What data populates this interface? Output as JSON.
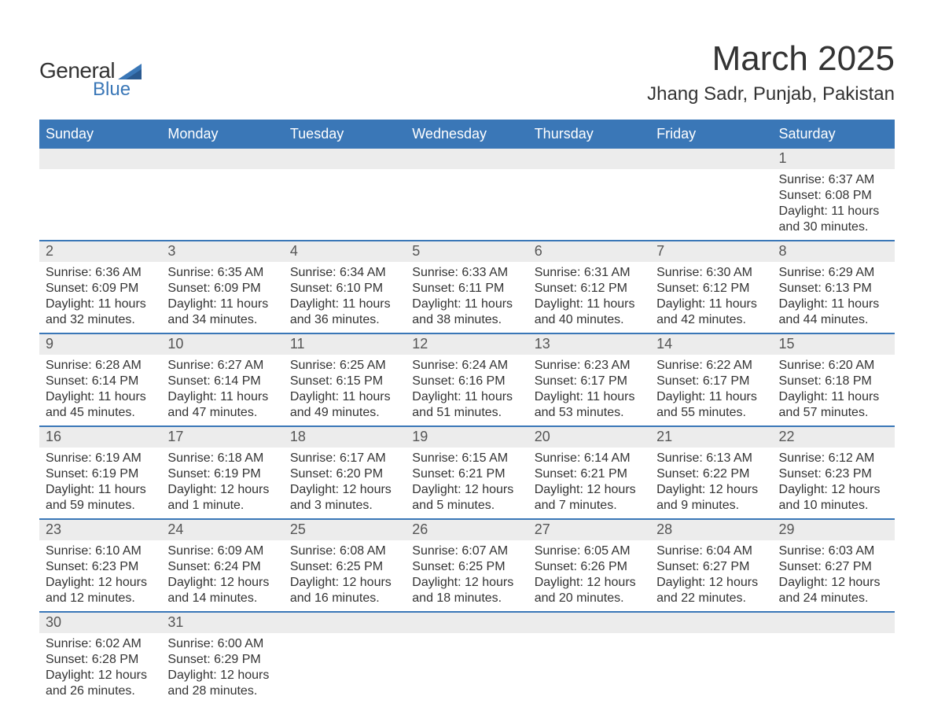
{
  "logo": {
    "word1": "General",
    "word2": "Blue",
    "flag_color": "#3a77b7"
  },
  "title": "March 2025",
  "location": "Jhang Sadr, Punjab, Pakistan",
  "calendar": {
    "type": "table",
    "header_bg": "#3a77b7",
    "header_text_color": "#ffffff",
    "row_divider_color": "#3a77b7",
    "daterow_bg": "#ececec",
    "body_bg": "#ffffff",
    "text_color": "#333333",
    "header_fontsize": 18,
    "daynum_fontsize": 18,
    "info_fontsize": 16,
    "weekdays": [
      "Sunday",
      "Monday",
      "Tuesday",
      "Wednesday",
      "Thursday",
      "Friday",
      "Saturday"
    ],
    "weeks": [
      [
        null,
        null,
        null,
        null,
        null,
        null,
        {
          "n": "1",
          "sr": "Sunrise: 6:37 AM",
          "ss": "Sunset: 6:08 PM",
          "d1": "Daylight: 11 hours",
          "d2": "and 30 minutes."
        }
      ],
      [
        {
          "n": "2",
          "sr": "Sunrise: 6:36 AM",
          "ss": "Sunset: 6:09 PM",
          "d1": "Daylight: 11 hours",
          "d2": "and 32 minutes."
        },
        {
          "n": "3",
          "sr": "Sunrise: 6:35 AM",
          "ss": "Sunset: 6:09 PM",
          "d1": "Daylight: 11 hours",
          "d2": "and 34 minutes."
        },
        {
          "n": "4",
          "sr": "Sunrise: 6:34 AM",
          "ss": "Sunset: 6:10 PM",
          "d1": "Daylight: 11 hours",
          "d2": "and 36 minutes."
        },
        {
          "n": "5",
          "sr": "Sunrise: 6:33 AM",
          "ss": "Sunset: 6:11 PM",
          "d1": "Daylight: 11 hours",
          "d2": "and 38 minutes."
        },
        {
          "n": "6",
          "sr": "Sunrise: 6:31 AM",
          "ss": "Sunset: 6:12 PM",
          "d1": "Daylight: 11 hours",
          "d2": "and 40 minutes."
        },
        {
          "n": "7",
          "sr": "Sunrise: 6:30 AM",
          "ss": "Sunset: 6:12 PM",
          "d1": "Daylight: 11 hours",
          "d2": "and 42 minutes."
        },
        {
          "n": "8",
          "sr": "Sunrise: 6:29 AM",
          "ss": "Sunset: 6:13 PM",
          "d1": "Daylight: 11 hours",
          "d2": "and 44 minutes."
        }
      ],
      [
        {
          "n": "9",
          "sr": "Sunrise: 6:28 AM",
          "ss": "Sunset: 6:14 PM",
          "d1": "Daylight: 11 hours",
          "d2": "and 45 minutes."
        },
        {
          "n": "10",
          "sr": "Sunrise: 6:27 AM",
          "ss": "Sunset: 6:14 PM",
          "d1": "Daylight: 11 hours",
          "d2": "and 47 minutes."
        },
        {
          "n": "11",
          "sr": "Sunrise: 6:25 AM",
          "ss": "Sunset: 6:15 PM",
          "d1": "Daylight: 11 hours",
          "d2": "and 49 minutes."
        },
        {
          "n": "12",
          "sr": "Sunrise: 6:24 AM",
          "ss": "Sunset: 6:16 PM",
          "d1": "Daylight: 11 hours",
          "d2": "and 51 minutes."
        },
        {
          "n": "13",
          "sr": "Sunrise: 6:23 AM",
          "ss": "Sunset: 6:17 PM",
          "d1": "Daylight: 11 hours",
          "d2": "and 53 minutes."
        },
        {
          "n": "14",
          "sr": "Sunrise: 6:22 AM",
          "ss": "Sunset: 6:17 PM",
          "d1": "Daylight: 11 hours",
          "d2": "and 55 minutes."
        },
        {
          "n": "15",
          "sr": "Sunrise: 6:20 AM",
          "ss": "Sunset: 6:18 PM",
          "d1": "Daylight: 11 hours",
          "d2": "and 57 minutes."
        }
      ],
      [
        {
          "n": "16",
          "sr": "Sunrise: 6:19 AM",
          "ss": "Sunset: 6:19 PM",
          "d1": "Daylight: 11 hours",
          "d2": "and 59 minutes."
        },
        {
          "n": "17",
          "sr": "Sunrise: 6:18 AM",
          "ss": "Sunset: 6:19 PM",
          "d1": "Daylight: 12 hours",
          "d2": "and 1 minute."
        },
        {
          "n": "18",
          "sr": "Sunrise: 6:17 AM",
          "ss": "Sunset: 6:20 PM",
          "d1": "Daylight: 12 hours",
          "d2": "and 3 minutes."
        },
        {
          "n": "19",
          "sr": "Sunrise: 6:15 AM",
          "ss": "Sunset: 6:21 PM",
          "d1": "Daylight: 12 hours",
          "d2": "and 5 minutes."
        },
        {
          "n": "20",
          "sr": "Sunrise: 6:14 AM",
          "ss": "Sunset: 6:21 PM",
          "d1": "Daylight: 12 hours",
          "d2": "and 7 minutes."
        },
        {
          "n": "21",
          "sr": "Sunrise: 6:13 AM",
          "ss": "Sunset: 6:22 PM",
          "d1": "Daylight: 12 hours",
          "d2": "and 9 minutes."
        },
        {
          "n": "22",
          "sr": "Sunrise: 6:12 AM",
          "ss": "Sunset: 6:23 PM",
          "d1": "Daylight: 12 hours",
          "d2": "and 10 minutes."
        }
      ],
      [
        {
          "n": "23",
          "sr": "Sunrise: 6:10 AM",
          "ss": "Sunset: 6:23 PM",
          "d1": "Daylight: 12 hours",
          "d2": "and 12 minutes."
        },
        {
          "n": "24",
          "sr": "Sunrise: 6:09 AM",
          "ss": "Sunset: 6:24 PM",
          "d1": "Daylight: 12 hours",
          "d2": "and 14 minutes."
        },
        {
          "n": "25",
          "sr": "Sunrise: 6:08 AM",
          "ss": "Sunset: 6:25 PM",
          "d1": "Daylight: 12 hours",
          "d2": "and 16 minutes."
        },
        {
          "n": "26",
          "sr": "Sunrise: 6:07 AM",
          "ss": "Sunset: 6:25 PM",
          "d1": "Daylight: 12 hours",
          "d2": "and 18 minutes."
        },
        {
          "n": "27",
          "sr": "Sunrise: 6:05 AM",
          "ss": "Sunset: 6:26 PM",
          "d1": "Daylight: 12 hours",
          "d2": "and 20 minutes."
        },
        {
          "n": "28",
          "sr": "Sunrise: 6:04 AM",
          "ss": "Sunset: 6:27 PM",
          "d1": "Daylight: 12 hours",
          "d2": "and 22 minutes."
        },
        {
          "n": "29",
          "sr": "Sunrise: 6:03 AM",
          "ss": "Sunset: 6:27 PM",
          "d1": "Daylight: 12 hours",
          "d2": "and 24 minutes."
        }
      ],
      [
        {
          "n": "30",
          "sr": "Sunrise: 6:02 AM",
          "ss": "Sunset: 6:28 PM",
          "d1": "Daylight: 12 hours",
          "d2": "and 26 minutes."
        },
        {
          "n": "31",
          "sr": "Sunrise: 6:00 AM",
          "ss": "Sunset: 6:29 PM",
          "d1": "Daylight: 12 hours",
          "d2": "and 28 minutes."
        },
        null,
        null,
        null,
        null,
        null
      ]
    ]
  }
}
